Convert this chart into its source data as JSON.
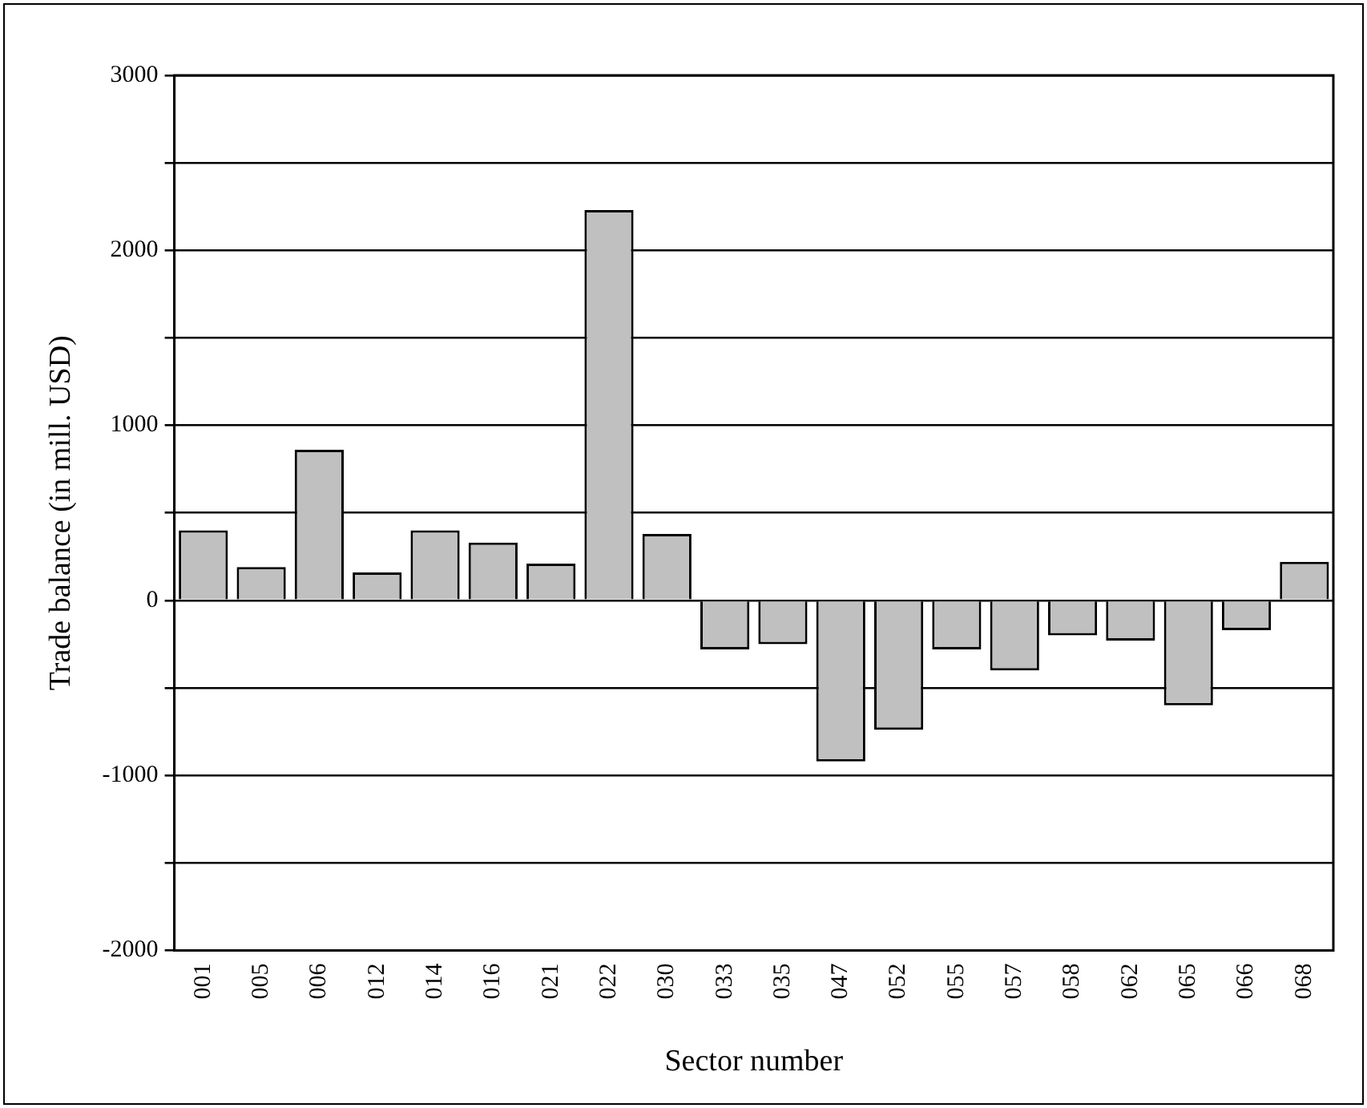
{
  "chart_data": {
    "type": "bar",
    "xlabel": "Sector number",
    "ylabel": "Trade balance (in mill. USD)",
    "categories": [
      "001",
      "005",
      "006",
      "012",
      "014",
      "016",
      "021",
      "022",
      "030",
      "033",
      "035",
      "047",
      "052",
      "055",
      "057",
      "058",
      "062",
      "065",
      "066",
      "068"
    ],
    "values": [
      400,
      190,
      860,
      160,
      400,
      330,
      210,
      2230,
      380,
      -280,
      -250,
      -920,
      -740,
      -280,
      -400,
      -200,
      -230,
      -600,
      -170,
      220
    ],
    "color": "#c0c0c0",
    "ylim": [
      -2000,
      3000
    ],
    "yticks": [
      -2000,
      {
        "value": -1500,
        "label": null
      },
      -1000,
      {
        "value": -500,
        "label": null
      },
      0,
      {
        "value": 500,
        "label": null
      },
      1000,
      {
        "value": 1500,
        "label": null
      },
      2000,
      {
        "value": 2500,
        "label": null
      },
      3000
    ],
    "grid": "y",
    "legend": false
  }
}
